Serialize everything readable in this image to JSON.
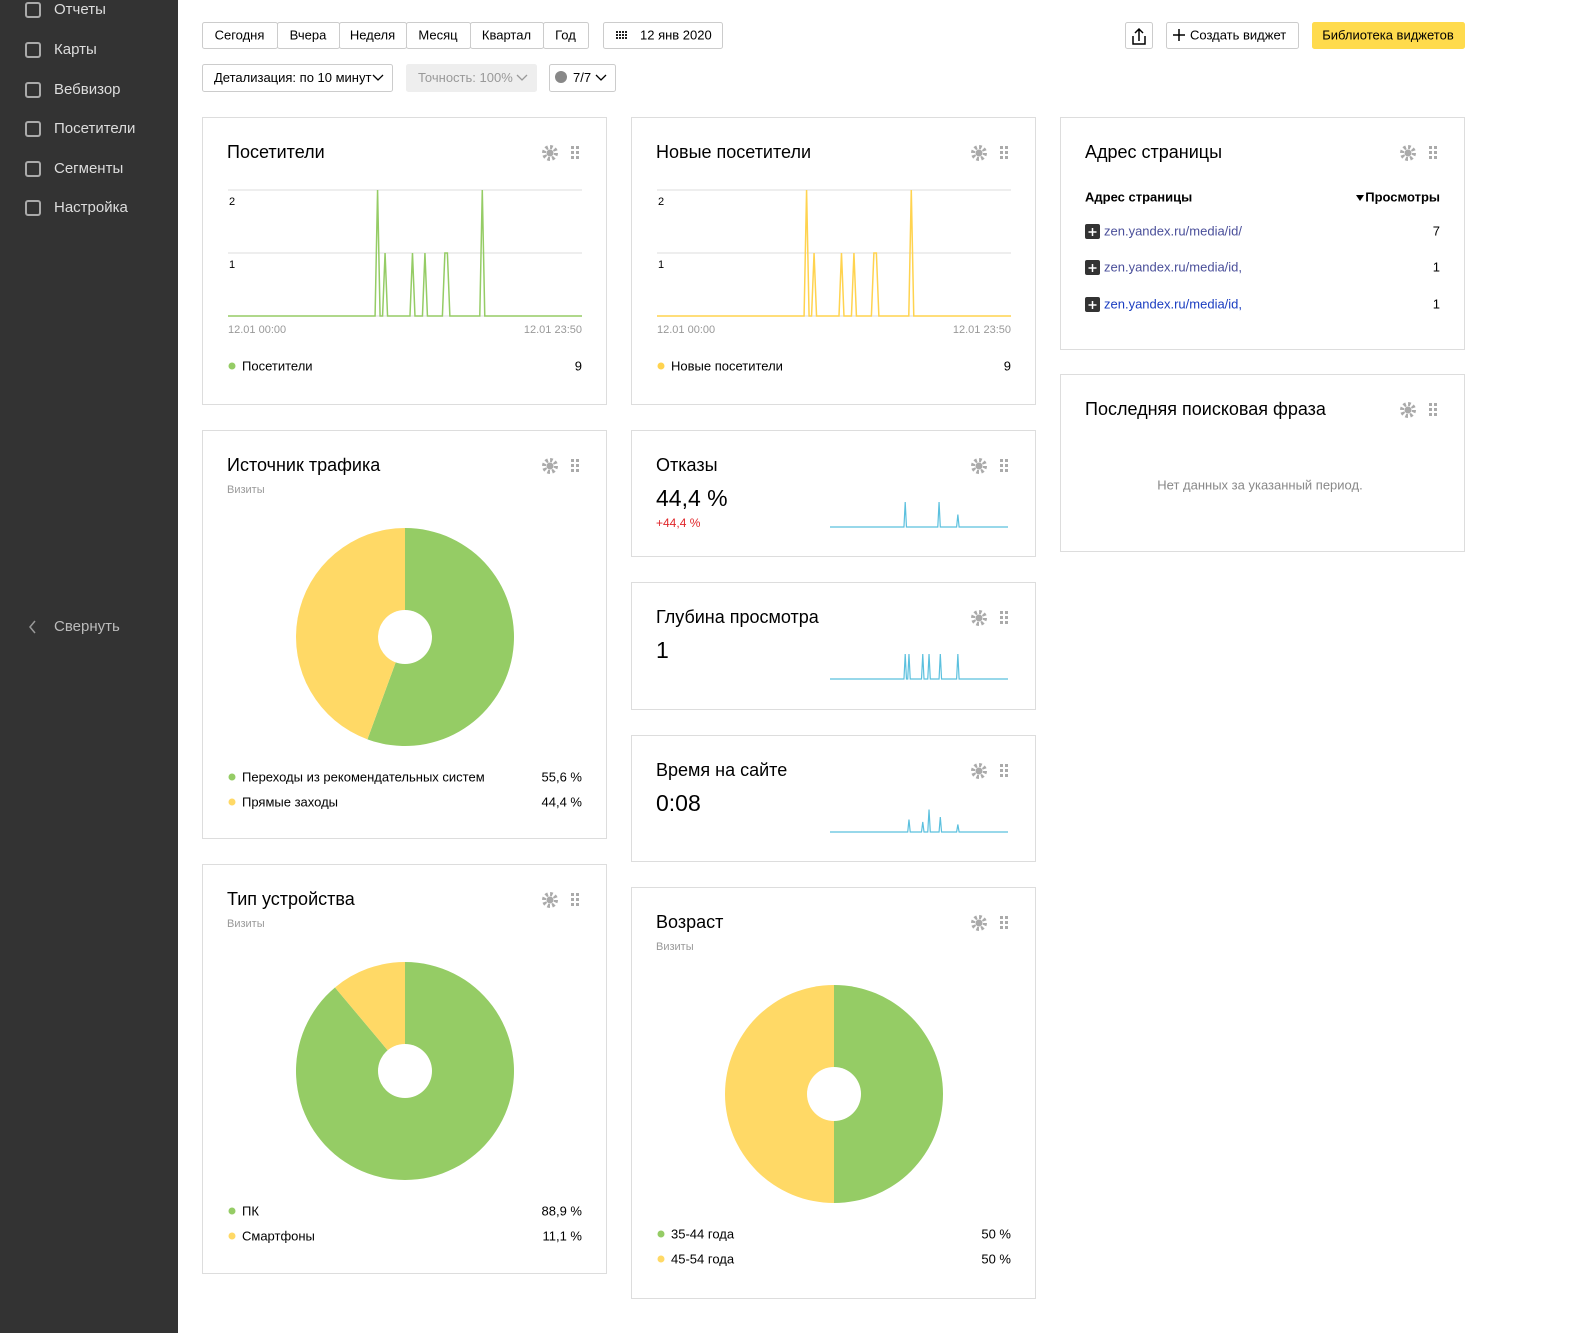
{
  "sidebar": {
    "items": [
      "Отчеты",
      "Карты",
      "Вебвизор",
      "Посетители",
      "Сегменты",
      "Настройка"
    ],
    "collapse": "Свернуть"
  },
  "toolbar": {
    "periods": [
      "Сегодня",
      "Вчера",
      "Неделя",
      "Месяц",
      "Квартал",
      "Год"
    ],
    "date": "12 янв 2020",
    "create_widget": "Создать виджет",
    "library": "Библиотека виджетов",
    "detail": "Детализация: по 10 минут",
    "accuracy": "Точность: 100%",
    "segments": "7/7"
  },
  "widgets": {
    "visitors": {
      "title": "Посетители",
      "type": "line",
      "x_labels": [
        "12.01 00:00",
        "12.01 23:50"
      ],
      "ylim": [
        0,
        2
      ],
      "yticks": [
        1,
        2
      ],
      "series": [
        {
          "name": "Посетители",
          "color": "#95cc65",
          "total": 9,
          "values": [
            0,
            0,
            0,
            0,
            0,
            0,
            0,
            0,
            0,
            0,
            0,
            0,
            0,
            0,
            0,
            0,
            0,
            0,
            0,
            0,
            0,
            0,
            0,
            0,
            0,
            0,
            0,
            0,
            0,
            0,
            0,
            0,
            0,
            0,
            0,
            0,
            0,
            0,
            0,
            0,
            0,
            0,
            0,
            0,
            0,
            0,
            0,
            0,
            0,
            0,
            0,
            0,
            0,
            0,
            0,
            0,
            0,
            0,
            0,
            0,
            2,
            0,
            0,
            1,
            0,
            0,
            0,
            0,
            0,
            0,
            0,
            0,
            0,
            0,
            1,
            0,
            0,
            0,
            0,
            1,
            0,
            0,
            0,
            0,
            0,
            0,
            0,
            1,
            1,
            0,
            0,
            0,
            0,
            0,
            0,
            0,
            0,
            0,
            0,
            0,
            0,
            0,
            2,
            0,
            0,
            0,
            0,
            0,
            0,
            0,
            0,
            0,
            0,
            0,
            0,
            0,
            0,
            0,
            0,
            0,
            0,
            0,
            0,
            0,
            0,
            0,
            0,
            0,
            0,
            0,
            0,
            0,
            0,
            0,
            0,
            0,
            0,
            0,
            0,
            0,
            0,
            0,
            0
          ]
        }
      ]
    },
    "new_visitors": {
      "title": "Новые посетители",
      "type": "line",
      "x_labels": [
        "12.01 00:00",
        "12.01 23:50"
      ],
      "ylim": [
        0,
        2
      ],
      "yticks": [
        1,
        2
      ],
      "series": [
        {
          "name": "Новые посетители",
          "color": "#ffd34f",
          "total": 9,
          "values": [
            0,
            0,
            0,
            0,
            0,
            0,
            0,
            0,
            0,
            0,
            0,
            0,
            0,
            0,
            0,
            0,
            0,
            0,
            0,
            0,
            0,
            0,
            0,
            0,
            0,
            0,
            0,
            0,
            0,
            0,
            0,
            0,
            0,
            0,
            0,
            0,
            0,
            0,
            0,
            0,
            0,
            0,
            0,
            0,
            0,
            0,
            0,
            0,
            0,
            0,
            0,
            0,
            0,
            0,
            0,
            0,
            0,
            0,
            0,
            0,
            2,
            0,
            0,
            1,
            0,
            0,
            0,
            0,
            0,
            0,
            0,
            0,
            0,
            0,
            1,
            0,
            0,
            0,
            0,
            1,
            0,
            0,
            0,
            0,
            0,
            0,
            0,
            1,
            1,
            0,
            0,
            0,
            0,
            0,
            0,
            0,
            0,
            0,
            0,
            0,
            0,
            0,
            2,
            0,
            0,
            0,
            0,
            0,
            0,
            0,
            0,
            0,
            0,
            0,
            0,
            0,
            0,
            0,
            0,
            0,
            0,
            0,
            0,
            0,
            0,
            0,
            0,
            0,
            0,
            0,
            0,
            0,
            0,
            0,
            0,
            0,
            0,
            0,
            0,
            0,
            0,
            0,
            0
          ]
        }
      ]
    },
    "address": {
      "title": "Адрес страницы",
      "columns": [
        "Адрес страницы",
        "Просмотры"
      ],
      "rows": [
        [
          "zen.yandex.ru/media/id/",
          7
        ],
        [
          "zen.yandex.ru/media/id,",
          1
        ],
        [
          "zen.yandex.ru/media/id,",
          1
        ]
      ]
    },
    "search": {
      "title": "Последняя поисковая фраза",
      "message": "Нет данных за указанный период."
    },
    "traffic": {
      "title": "Источник трафика",
      "subtitle": "Визиты",
      "type": "pie",
      "categories": [
        "Переходы из рекомендательных систем",
        "Прямые заходы"
      ],
      "values": [
        55.6,
        44.4
      ],
      "value_labels": [
        "55,6 %",
        "44,4 %"
      ],
      "colors": [
        "#95cc65",
        "#ffd966"
      ]
    },
    "bounce": {
      "title": "Отказы",
      "value": 44.4,
      "value_label": "44,4 %",
      "change": 44.4,
      "change_label": "+44,4 %",
      "spark": {
        "color": "#5bc0de",
        "ylim": [
          0,
          100
        ],
        "values": [
          0,
          0,
          0,
          0,
          0,
          0,
          0,
          0,
          0,
          0,
          0,
          0,
          0,
          0,
          0,
          0,
          0,
          0,
          0,
          0,
          0,
          0,
          0,
          0,
          0,
          0,
          0,
          0,
          0,
          0,
          0,
          0,
          0,
          0,
          0,
          0,
          0,
          0,
          0,
          0,
          0,
          0,
          0,
          0,
          0,
          0,
          0,
          0,
          0,
          0,
          0,
          0,
          0,
          0,
          0,
          0,
          0,
          0,
          0,
          0,
          100,
          0,
          0,
          0,
          0,
          0,
          0,
          0,
          0,
          0,
          0,
          0,
          0,
          0,
          0,
          0,
          0,
          0,
          0,
          0,
          0,
          0,
          0,
          0,
          0,
          0,
          0,
          100,
          0,
          0,
          0,
          0,
          0,
          0,
          0,
          0,
          0,
          0,
          0,
          0,
          0,
          0,
          50,
          0,
          0,
          0,
          0,
          0,
          0,
          0,
          0,
          0,
          0,
          0,
          0,
          0,
          0,
          0,
          0,
          0,
          0,
          0,
          0,
          0,
          0,
          0,
          0,
          0,
          0,
          0,
          0,
          0,
          0,
          0,
          0,
          0,
          0,
          0,
          0,
          0,
          0,
          0,
          0
        ]
      }
    },
    "depth": {
      "title": "Глубина просмотра",
      "value": 1,
      "spark": {
        "color": "#5bc0de",
        "ylim": [
          0,
          1
        ],
        "values": [
          0,
          0,
          0,
          0,
          0,
          0,
          0,
          0,
          0,
          0,
          0,
          0,
          0,
          0,
          0,
          0,
          0,
          0,
          0,
          0,
          0,
          0,
          0,
          0,
          0,
          0,
          0,
          0,
          0,
          0,
          0,
          0,
          0,
          0,
          0,
          0,
          0,
          0,
          0,
          0,
          0,
          0,
          0,
          0,
          0,
          0,
          0,
          0,
          0,
          0,
          0,
          0,
          0,
          0,
          0,
          0,
          0,
          0,
          0,
          0,
          1,
          0,
          0,
          1,
          0,
          0,
          0,
          0,
          0,
          0,
          0,
          0,
          0,
          0,
          1,
          0,
          0,
          0,
          0,
          1,
          0,
          0,
          0,
          0,
          0,
          0,
          0,
          0,
          1,
          0,
          0,
          0,
          0,
          0,
          0,
          0,
          0,
          0,
          0,
          0,
          0,
          0,
          1,
          0,
          0,
          0,
          0,
          0,
          0,
          0,
          0,
          0,
          0,
          0,
          0,
          0,
          0,
          0,
          0,
          0,
          0,
          0,
          0,
          0,
          0,
          0,
          0,
          0,
          0,
          0,
          0,
          0,
          0,
          0,
          0,
          0,
          0,
          0,
          0,
          0,
          0,
          0,
          0
        ]
      }
    },
    "time": {
      "title": "Время на сайте",
      "value": 8,
      "value_label": "0:08",
      "spark": {
        "color": "#5bc0de",
        "ylim": [
          0,
          30
        ],
        "values": [
          0,
          0,
          0,
          0,
          0,
          0,
          0,
          0,
          0,
          0,
          0,
          0,
          0,
          0,
          0,
          0,
          0,
          0,
          0,
          0,
          0,
          0,
          0,
          0,
          0,
          0,
          0,
          0,
          0,
          0,
          0,
          0,
          0,
          0,
          0,
          0,
          0,
          0,
          0,
          0,
          0,
          0,
          0,
          0,
          0,
          0,
          0,
          0,
          0,
          0,
          0,
          0,
          0,
          0,
          0,
          0,
          0,
          0,
          0,
          0,
          0,
          0,
          0,
          15,
          0,
          0,
          0,
          0,
          0,
          0,
          0,
          0,
          0,
          0,
          12,
          0,
          0,
          0,
          0,
          27,
          0,
          0,
          0,
          0,
          0,
          0,
          0,
          0,
          18,
          0,
          0,
          0,
          0,
          0,
          0,
          0,
          0,
          0,
          0,
          0,
          0,
          0,
          9,
          0,
          0,
          0,
          0,
          0,
          0,
          0,
          0,
          0,
          0,
          0,
          0,
          0,
          0,
          0,
          0,
          0,
          0,
          0,
          0,
          0,
          0,
          0,
          0,
          0,
          0,
          0,
          0,
          0,
          0,
          0,
          0,
          0,
          0,
          0,
          0,
          0,
          0,
          0,
          0
        ]
      }
    },
    "device": {
      "title": "Тип устройства",
      "subtitle": "Визиты",
      "type": "pie",
      "categories": [
        "ПК",
        "Смартфоны"
      ],
      "values": [
        88.9,
        11.1
      ],
      "value_labels": [
        "88,9 %",
        "11,1 %"
      ],
      "colors": [
        "#95cc65",
        "#ffd966"
      ]
    },
    "age": {
      "title": "Возраст",
      "subtitle": "Визиты",
      "type": "pie",
      "categories": [
        "35-44 года",
        "45-54 года"
      ],
      "values": [
        50,
        50
      ],
      "value_labels": [
        "50 %",
        "50 %"
      ],
      "colors": [
        "#95cc65",
        "#ffd966"
      ]
    }
  }
}
